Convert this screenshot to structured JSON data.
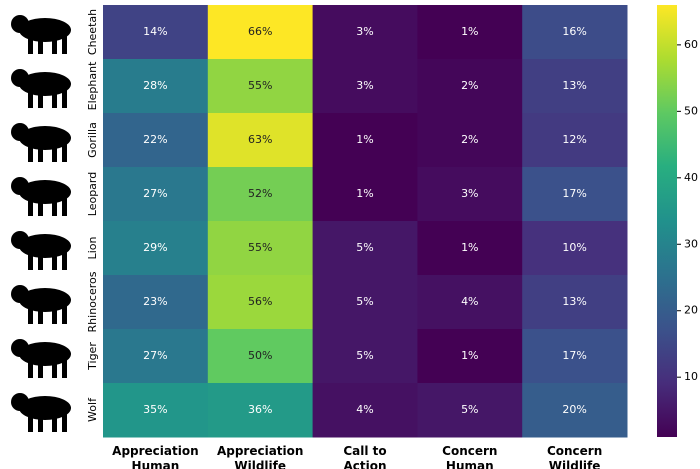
{
  "chart_data": {
    "type": "heatmap",
    "rows": [
      "Cheetah",
      "Elephant",
      "Gorilla",
      "Leopard",
      "Lion",
      "Rhinoceros",
      "Tiger",
      "Wolf"
    ],
    "columns": [
      [
        "Appreciation",
        "Human"
      ],
      [
        "Appreciation",
        "Wildlife"
      ],
      [
        "Call to",
        "Action"
      ],
      [
        "Concern",
        "Human"
      ],
      [
        "Concern",
        "Wildlife"
      ]
    ],
    "values": [
      [
        14,
        66,
        3,
        1,
        16
      ],
      [
        28,
        55,
        3,
        2,
        13
      ],
      [
        22,
        63,
        1,
        2,
        12
      ],
      [
        27,
        52,
        1,
        3,
        17
      ],
      [
        29,
        55,
        5,
        1,
        10
      ],
      [
        23,
        56,
        5,
        4,
        13
      ],
      [
        27,
        50,
        5,
        1,
        17
      ],
      [
        35,
        36,
        4,
        5,
        20
      ]
    ],
    "value_labels": [
      [
        "14%",
        "66%",
        "3%",
        "1%",
        "16%"
      ],
      [
        "28%",
        "55%",
        "3%",
        "2%",
        "13%"
      ],
      [
        "22%",
        "63%",
        "1%",
        "2%",
        "12%"
      ],
      [
        "27%",
        "52%",
        "1%",
        "3%",
        "17%"
      ],
      [
        "29%",
        "55%",
        "5%",
        "1%",
        "10%"
      ],
      [
        "23%",
        "56%",
        "5%",
        "4%",
        "13%"
      ],
      [
        "27%",
        "50%",
        "5%",
        "1%",
        "17%"
      ],
      [
        "35%",
        "36%",
        "4%",
        "5%",
        "20%"
      ]
    ],
    "colormap": "viridis",
    "clim": [
      1,
      66
    ],
    "colorbar_ticks": [
      10,
      20,
      30,
      40,
      50,
      60
    ]
  }
}
